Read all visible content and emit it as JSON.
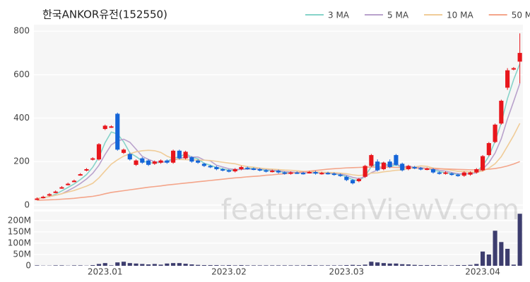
{
  "chart_data": {
    "type": "candlestick",
    "title": "한국ANKOR유전(152550)",
    "watermark": "feature.enViewV.com",
    "categories": [
      null,
      null,
      null,
      null,
      null,
      null,
      null,
      null,
      null,
      null,
      null,
      "2023.01",
      null,
      null,
      null,
      null,
      null,
      null,
      null,
      null,
      null,
      null,
      null,
      null,
      null,
      null,
      null,
      null,
      null,
      null,
      null,
      "2023.02",
      null,
      null,
      null,
      null,
      null,
      null,
      null,
      null,
      null,
      null,
      null,
      null,
      null,
      null,
      null,
      null,
      null,
      null,
      "2023.03",
      null,
      null,
      null,
      null,
      null,
      null,
      null,
      null,
      null,
      null,
      null,
      null,
      null,
      null,
      null,
      null,
      null,
      null,
      null,
      null,
      null,
      "2023.04",
      null,
      null,
      null,
      null,
      null,
      null
    ],
    "open": [
      28,
      35,
      45,
      60,
      80,
      95,
      110,
      140,
      160,
      210,
      210,
      350,
      360,
      420,
      240,
      235,
      185,
      215,
      205,
      190,
      195,
      205,
      195,
      250,
      215,
      220,
      205,
      190,
      180,
      175,
      165,
      160,
      155,
      165,
      172,
      168,
      165,
      160,
      155,
      158,
      150,
      145,
      150,
      148,
      150,
      152,
      145,
      148,
      145,
      140,
      130,
      115,
      110,
      130,
      180,
      200,
      165,
      200,
      230,
      190,
      165,
      175,
      170,
      165,
      165,
      150,
      145,
      145,
      140,
      135,
      140,
      150,
      160,
      230,
      290,
      375,
      540,
      625,
      660
    ],
    "high": [
      35,
      43,
      55,
      67,
      87,
      103,
      117,
      147,
      170,
      220,
      285,
      370,
      367,
      425,
      260,
      240,
      210,
      220,
      210,
      205,
      210,
      210,
      255,
      255,
      250,
      225,
      210,
      195,
      185,
      180,
      170,
      165,
      170,
      180,
      177,
      173,
      170,
      165,
      163,
      163,
      155,
      155,
      155,
      153,
      157,
      157,
      153,
      153,
      150,
      145,
      135,
      120,
      125,
      185,
      235,
      210,
      200,
      210,
      235,
      195,
      185,
      180,
      175,
      173,
      170,
      155,
      155,
      150,
      145,
      155,
      155,
      170,
      230,
      290,
      375,
      485,
      630,
      635,
      790
    ],
    "low": [
      23,
      30,
      40,
      55,
      75,
      90,
      105,
      135,
      155,
      205,
      205,
      345,
      355,
      250,
      235,
      205,
      180,
      190,
      180,
      185,
      190,
      190,
      190,
      210,
      210,
      195,
      190,
      175,
      170,
      160,
      155,
      150,
      150,
      160,
      163,
      160,
      155,
      150,
      150,
      145,
      140,
      140,
      143,
      140,
      145,
      140,
      140,
      140,
      135,
      130,
      110,
      95,
      105,
      125,
      175,
      155,
      160,
      170,
      180,
      155,
      160,
      165,
      160,
      160,
      145,
      140,
      140,
      135,
      130,
      130,
      135,
      145,
      155,
      225,
      285,
      370,
      530,
      620,
      560
    ],
    "close": [
      30,
      38,
      50,
      62,
      82,
      98,
      112,
      142,
      165,
      215,
      280,
      365,
      362,
      255,
      255,
      210,
      205,
      195,
      185,
      200,
      205,
      195,
      250,
      215,
      245,
      200,
      195,
      180,
      175,
      165,
      160,
      155,
      165,
      175,
      168,
      165,
      160,
      155,
      158,
      150,
      145,
      150,
      148,
      145,
      152,
      145,
      148,
      145,
      140,
      135,
      115,
      100,
      120,
      180,
      230,
      160,
      195,
      175,
      185,
      160,
      180,
      170,
      165,
      168,
      150,
      145,
      150,
      140,
      135,
      150,
      150,
      165,
      225,
      285,
      370,
      480,
      620,
      630,
      700
    ],
    "up_color": "#e8161c",
    "down_color": "#1565d8",
    "series": [
      {
        "name": "3 MA",
        "color": "#86d3c9",
        "values": [
          30,
          34,
          39,
          50,
          65,
          81,
          97,
          117,
          140,
          174,
          220,
          287,
          336,
          327,
          291,
          240,
          223,
          203,
          195,
          193,
          197,
          200,
          217,
          220,
          237,
          220,
          213,
          192,
          183,
          173,
          167,
          160,
          160,
          165,
          169,
          169,
          164,
          160,
          158,
          154,
          151,
          148,
          148,
          148,
          148,
          147,
          148,
          146,
          144,
          140,
          130,
          117,
          112,
          133,
          177,
          190,
          195,
          177,
          185,
          173,
          175,
          170,
          172,
          168,
          161,
          154,
          148,
          145,
          142,
          142,
          145,
          155,
          180,
          225,
          293,
          378,
          490,
          577,
          650
        ]
      },
      {
        "name": "5 MA",
        "color": "#b9a2cc",
        "values": [
          30,
          34,
          39,
          45,
          52,
          66,
          81,
          99,
          120,
          146,
          183,
          233,
          277,
          295,
          303,
          289,
          257,
          224,
          210,
          199,
          198,
          198,
          207,
          213,
          222,
          221,
          221,
          207,
          203,
          183,
          175,
          167,
          164,
          164,
          165,
          166,
          167,
          165,
          161,
          158,
          154,
          152,
          150,
          148,
          148,
          148,
          148,
          147,
          146,
          143,
          137,
          127,
          122,
          130,
          149,
          161,
          177,
          188,
          189,
          175,
          179,
          174,
          172,
          169,
          167,
          160,
          156,
          150,
          144,
          144,
          145,
          148,
          165,
          195,
          239,
          305,
          396,
          477,
          560
        ]
      },
      {
        "name": "10 MA",
        "color": "#f0cc98",
        "values": [
          30,
          34,
          39,
          45,
          52,
          60,
          67,
          77,
          87,
          100,
          125,
          157,
          188,
          208,
          225,
          236,
          245,
          250,
          252,
          250,
          242,
          225,
          214,
          210,
          209,
          208,
          207,
          206,
          205,
          201,
          197,
          193,
          190,
          182,
          177,
          174,
          170,
          167,
          165,
          163,
          161,
          160,
          158,
          155,
          154,
          152,
          151,
          150,
          149,
          147,
          144,
          139,
          136,
          139,
          147,
          148,
          153,
          156,
          160,
          162,
          168,
          175,
          180,
          178,
          170,
          168,
          164,
          160,
          155,
          155,
          152,
          151,
          157,
          170,
          190,
          223,
          271,
          320,
          376
        ]
      },
      {
        "name": "50 MA",
        "color": "#f4a58a",
        "values": [
          22,
          23,
          24,
          25,
          27,
          29,
          31,
          34,
          37,
          40,
          45,
          52,
          58,
          62,
          66,
          70,
          74,
          78,
          82,
          85,
          88,
          92,
          95,
          98,
          101,
          104,
          107,
          110,
          113,
          116,
          119,
          122,
          125,
          127,
          130,
          132,
          134,
          137,
          139,
          142,
          144,
          147,
          150,
          153,
          156,
          159,
          162,
          165,
          167,
          169,
          171,
          172,
          173,
          174,
          175,
          175,
          175,
          174,
          173,
          172,
          171,
          170,
          169,
          168,
          168,
          167,
          166,
          165,
          164,
          163,
          162,
          162,
          163,
          165,
          168,
          173,
          180,
          189,
          200
        ]
      }
    ],
    "ylim": [
      -20,
      830
    ],
    "yticks": [
      0,
      200,
      400,
      600,
      800
    ],
    "grid": true,
    "volume": {
      "color": "#3d3d6e",
      "values": [
        2000000,
        1000000,
        1000000,
        2000000,
        2000000,
        1000000,
        2000000,
        2000000,
        1000000,
        3000000,
        8000000,
        12000000,
        2000000,
        15000000,
        18000000,
        12000000,
        10000000,
        8000000,
        6000000,
        8000000,
        5000000,
        10000000,
        12000000,
        12000000,
        9000000,
        6000000,
        4000000,
        3000000,
        3000000,
        3000000,
        2000000,
        3000000,
        2000000,
        3000000,
        2000000,
        2000000,
        2000000,
        2000000,
        2000000,
        2000000,
        2000000,
        2000000,
        2000000,
        2000000,
        3000000,
        2000000,
        2000000,
        2000000,
        2000000,
        2000000,
        3000000,
        4000000,
        3000000,
        5000000,
        18000000,
        15000000,
        12000000,
        10000000,
        10000000,
        7000000,
        6000000,
        4000000,
        3000000,
        3000000,
        3000000,
        3000000,
        2000000,
        2000000,
        3000000,
        3000000,
        4000000,
        8000000,
        63000000,
        50000000,
        155000000,
        105000000,
        75000000,
        5000000,
        230000000
      ],
      "ylim": [
        0,
        240000000
      ],
      "yticks": [
        0,
        {
          "value": 50000000,
          "label": "50M"
        },
        {
          "value": 100000000,
          "label": "100M"
        },
        {
          "value": 150000000,
          "label": "150M"
        },
        {
          "value": 200000000,
          "label": "200M"
        }
      ]
    }
  }
}
